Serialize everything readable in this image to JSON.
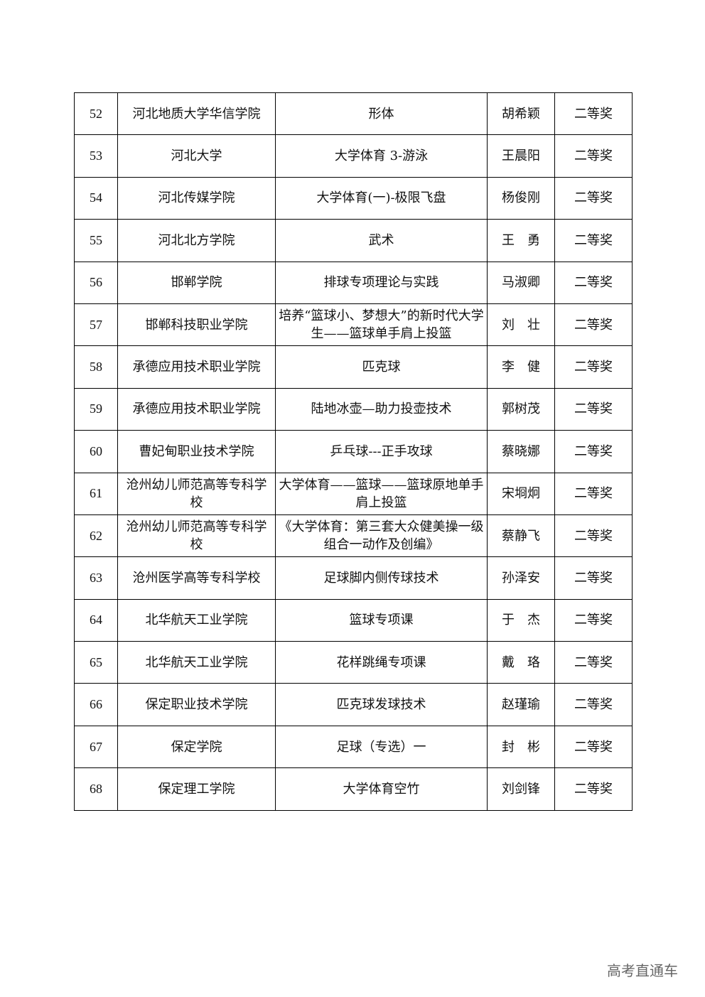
{
  "rows": [
    {
      "no": "52",
      "school": "河北地质大学华信学院",
      "course": "形体",
      "teacher": "胡希颖",
      "award": "二等奖"
    },
    {
      "no": "53",
      "school": "河北大学",
      "course": "大学体育 3-游泳",
      "teacher": "王晨阳",
      "award": "二等奖"
    },
    {
      "no": "54",
      "school": "河北传媒学院",
      "course": "大学体育(一)-极限飞盘",
      "teacher": "杨俊刚",
      "award": "二等奖"
    },
    {
      "no": "55",
      "school": "河北北方学院",
      "course": "武术",
      "teacher": "王　勇",
      "award": "二等奖"
    },
    {
      "no": "56",
      "school": "邯郸学院",
      "course": "排球专项理论与实践",
      "teacher": "马淑卿",
      "award": "二等奖"
    },
    {
      "no": "57",
      "school": "邯郸科技职业学院",
      "course": "培养“篮球小、梦想大”的新时代大学生——篮球单手肩上投篮",
      "teacher": "刘　壮",
      "award": "二等奖"
    },
    {
      "no": "58",
      "school": "承德应用技术职业学院",
      "course": "匹克球",
      "teacher": "李　健",
      "award": "二等奖"
    },
    {
      "no": "59",
      "school": "承德应用技术职业学院",
      "course": "陆地冰壶—助力投壶技术",
      "teacher": "郭树茂",
      "award": "二等奖"
    },
    {
      "no": "60",
      "school": "曹妃甸职业技术学院",
      "course": "乒乓球---正手攻球",
      "teacher": "蔡晓娜",
      "award": "二等奖"
    },
    {
      "no": "61",
      "school": "沧州幼儿师范高等专科学校",
      "course": "大学体育——篮球——篮球原地单手肩上投篮",
      "teacher": "宋埛炯",
      "award": "二等奖"
    },
    {
      "no": "62",
      "school": "沧州幼儿师范高等专科学校",
      "course": "《大学体育：第三套大众健美操一级 组合一动作及创编》",
      "teacher": "蔡静飞",
      "award": "二等奖"
    },
    {
      "no": "63",
      "school": "沧州医学高等专科学校",
      "course": "足球脚内侧传球技术",
      "teacher": "孙泽安",
      "award": "二等奖"
    },
    {
      "no": "64",
      "school": "北华航天工业学院",
      "course": "篮球专项课",
      "teacher": "于　杰",
      "award": "二等奖"
    },
    {
      "no": "65",
      "school": "北华航天工业学院",
      "course": "花样跳绳专项课",
      "teacher": "戴　珞",
      "award": "二等奖"
    },
    {
      "no": "66",
      "school": "保定职业技术学院",
      "course": "匹克球发球技术",
      "teacher": "赵瑾瑜",
      "award": "二等奖"
    },
    {
      "no": "67",
      "school": "保定学院",
      "course": "足球（专选）一",
      "teacher": "封　彬",
      "award": "二等奖"
    },
    {
      "no": "68",
      "school": "保定理工学院",
      "course": "大学体育空竹",
      "teacher": "刘剑锋",
      "award": "二等奖"
    }
  ],
  "watermark": "高考直通车"
}
